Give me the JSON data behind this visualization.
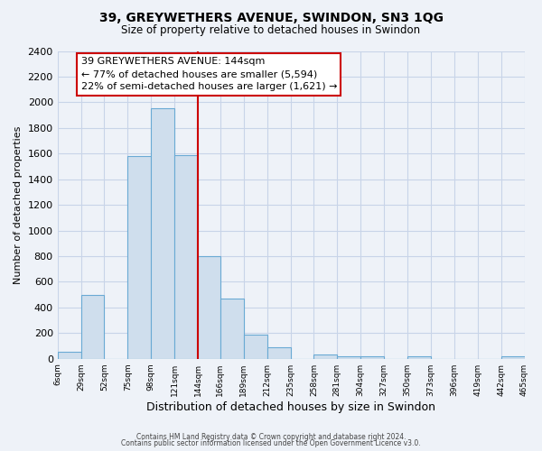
{
  "title": "39, GREYWETHERS AVENUE, SWINDON, SN3 1QG",
  "subtitle": "Size of property relative to detached houses in Swindon",
  "xlabel": "Distribution of detached houses by size in Swindon",
  "ylabel": "Number of detached properties",
  "bar_edges": [
    6,
    29,
    52,
    75,
    98,
    121,
    144,
    166,
    189,
    212,
    235,
    258,
    281,
    304,
    327,
    350,
    373,
    396,
    419,
    442,
    465
  ],
  "bar_heights": [
    55,
    500,
    0,
    1580,
    1950,
    1590,
    800,
    470,
    190,
    90,
    0,
    35,
    20,
    20,
    0,
    20,
    0,
    0,
    0,
    20
  ],
  "bar_color": "#cfdeed",
  "bar_edge_color": "#6aaad4",
  "reference_line_x": 144,
  "reference_line_color": "#cc0000",
  "annotation_line1": "39 GREYWETHERS AVENUE: 144sqm",
  "annotation_line2": "← 77% of detached houses are smaller (5,594)",
  "annotation_line3": "22% of semi-detached houses are larger (1,621) →",
  "annotation_box_facecolor": "#ffffff",
  "annotation_box_edgecolor": "#cc0000",
  "ylim": [
    0,
    2400
  ],
  "yticks": [
    0,
    200,
    400,
    600,
    800,
    1000,
    1200,
    1400,
    1600,
    1800,
    2000,
    2200,
    2400
  ],
  "tick_labels": [
    "6sqm",
    "29sqm",
    "52sqm",
    "75sqm",
    "98sqm",
    "121sqm",
    "144sqm",
    "166sqm",
    "189sqm",
    "212sqm",
    "235sqm",
    "258sqm",
    "281sqm",
    "304sqm",
    "327sqm",
    "350sqm",
    "373sqm",
    "396sqm",
    "419sqm",
    "442sqm",
    "465sqm"
  ],
  "footer_line1": "Contains HM Land Registry data © Crown copyright and database right 2024.",
  "footer_line2": "Contains public sector information licensed under the Open Government Licence v3.0.",
  "grid_color": "#c8d4e8",
  "background_color": "#eef2f8",
  "title_fontsize": 10,
  "subtitle_fontsize": 8.5,
  "ylabel_fontsize": 8,
  "xlabel_fontsize": 9,
  "ytick_fontsize": 8,
  "xtick_fontsize": 6.5,
  "footer_fontsize": 5.5,
  "annot_fontsize": 8
}
